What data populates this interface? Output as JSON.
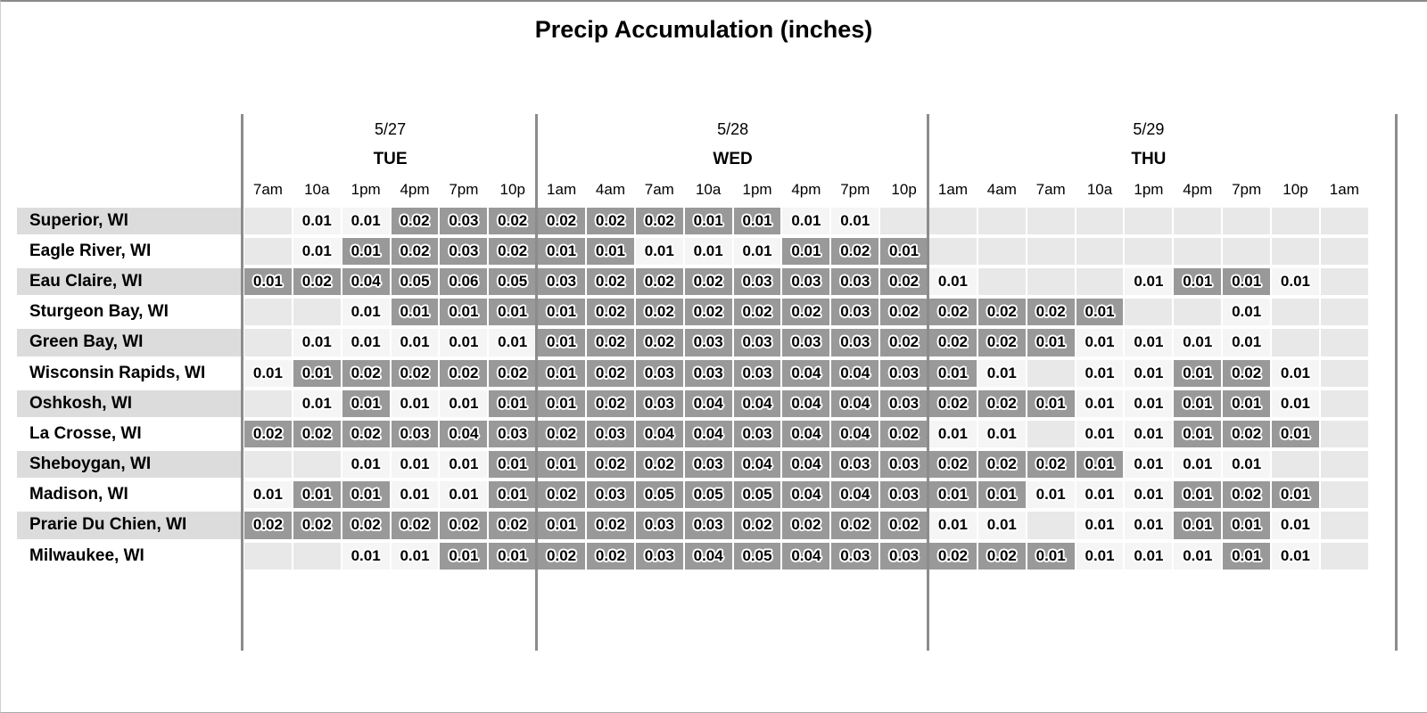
{
  "title": "Precip Accumulation (inches)",
  "colors": {
    "cell_empty": "#e8e8e8",
    "cell_light": "#f5f5f5",
    "cell_dark": "#999999",
    "row_stripe": "#dcdcdc",
    "divider": "#8c8c8c",
    "text": "#000000"
  },
  "chart_data": {
    "type": "heatmap",
    "title": "Precip Accumulation (inches)",
    "unit": "inches",
    "day_groups": [
      {
        "date": "5/27",
        "day": "TUE",
        "times": [
          "7am",
          "10a",
          "1pm",
          "4pm",
          "7pm",
          "10p"
        ]
      },
      {
        "date": "5/28",
        "day": "WED",
        "times": [
          "1am",
          "4am",
          "7am",
          "10a",
          "1pm",
          "4pm",
          "7pm",
          "10p"
        ]
      },
      {
        "date": "5/29",
        "day": "THU",
        "times": [
          "1am",
          "4am",
          "7am",
          "10a",
          "1pm",
          "4pm",
          "7pm",
          "10p",
          "1am"
        ]
      }
    ],
    "shade_legend": {
      "": "no precip",
      "light": "light cell background",
      "dark": "dark cell background"
    },
    "rows": [
      {
        "city": "Superior, WI",
        "values": [
          "",
          "0.01",
          "0.01",
          "0.02",
          "0.03",
          "0.02",
          "0.02",
          "0.02",
          "0.02",
          "0.01",
          "0.01",
          "0.01",
          "0.01",
          "",
          "",
          "",
          "",
          "",
          "",
          "",
          "",
          "",
          ""
        ],
        "shades": [
          "",
          "light",
          "light",
          "dark",
          "dark",
          "dark",
          "dark",
          "dark",
          "dark",
          "dark",
          "dark",
          "light",
          "light",
          "",
          "",
          "",
          "",
          "",
          "",
          "",
          "",
          "",
          ""
        ]
      },
      {
        "city": "Eagle River, WI",
        "values": [
          "",
          "0.01",
          "0.01",
          "0.02",
          "0.03",
          "0.02",
          "0.01",
          "0.01",
          "0.01",
          "0.01",
          "0.01",
          "0.01",
          "0.02",
          "0.01",
          "",
          "",
          "",
          "",
          "",
          "",
          "",
          "",
          ""
        ],
        "shades": [
          "",
          "light",
          "dark",
          "dark",
          "dark",
          "dark",
          "dark",
          "dark",
          "light",
          "light",
          "light",
          "dark",
          "dark",
          "dark",
          "",
          "",
          "",
          "",
          "",
          "",
          "",
          "",
          ""
        ]
      },
      {
        "city": "Eau Claire, WI",
        "values": [
          "0.01",
          "0.02",
          "0.04",
          "0.05",
          "0.06",
          "0.05",
          "0.03",
          "0.02",
          "0.02",
          "0.02",
          "0.03",
          "0.03",
          "0.03",
          "0.02",
          "0.01",
          "",
          "",
          "",
          "0.01",
          "0.01",
          "0.01",
          "0.01",
          ""
        ],
        "shades": [
          "dark",
          "dark",
          "dark",
          "dark",
          "dark",
          "dark",
          "dark",
          "dark",
          "dark",
          "dark",
          "dark",
          "dark",
          "dark",
          "dark",
          "light",
          "",
          "",
          "",
          "light",
          "dark",
          "dark",
          "light",
          ""
        ]
      },
      {
        "city": "Sturgeon Bay, WI",
        "values": [
          "",
          "",
          "0.01",
          "0.01",
          "0.01",
          "0.01",
          "0.01",
          "0.02",
          "0.02",
          "0.02",
          "0.02",
          "0.02",
          "0.03",
          "0.02",
          "0.02",
          "0.02",
          "0.02",
          "0.01",
          "",
          "",
          "0.01",
          "",
          ""
        ],
        "shades": [
          "",
          "",
          "light",
          "dark",
          "dark",
          "dark",
          "dark",
          "dark",
          "dark",
          "dark",
          "dark",
          "dark",
          "dark",
          "dark",
          "dark",
          "dark",
          "dark",
          "dark",
          "",
          "",
          "light",
          "",
          ""
        ]
      },
      {
        "city": "Green Bay, WI",
        "values": [
          "",
          "0.01",
          "0.01",
          "0.01",
          "0.01",
          "0.01",
          "0.01",
          "0.02",
          "0.02",
          "0.03",
          "0.03",
          "0.03",
          "0.03",
          "0.02",
          "0.02",
          "0.02",
          "0.01",
          "0.01",
          "0.01",
          "0.01",
          "0.01",
          "",
          ""
        ],
        "shades": [
          "",
          "light",
          "light",
          "light",
          "light",
          "light",
          "dark",
          "dark",
          "dark",
          "dark",
          "dark",
          "dark",
          "dark",
          "dark",
          "dark",
          "dark",
          "dark",
          "light",
          "light",
          "light",
          "light",
          "",
          ""
        ]
      },
      {
        "city": "Wisconsin Rapids, WI",
        "values": [
          "0.01",
          "0.01",
          "0.02",
          "0.02",
          "0.02",
          "0.02",
          "0.01",
          "0.02",
          "0.03",
          "0.03",
          "0.03",
          "0.04",
          "0.04",
          "0.03",
          "0.01",
          "0.01",
          "",
          "0.01",
          "0.01",
          "0.01",
          "0.02",
          "0.01",
          ""
        ],
        "shades": [
          "light",
          "dark",
          "dark",
          "dark",
          "dark",
          "dark",
          "dark",
          "dark",
          "dark",
          "dark",
          "dark",
          "dark",
          "dark",
          "dark",
          "dark",
          "light",
          "",
          "light",
          "light",
          "dark",
          "dark",
          "light",
          ""
        ]
      },
      {
        "city": "Oshkosh, WI",
        "values": [
          "",
          "0.01",
          "0.01",
          "0.01",
          "0.01",
          "0.01",
          "0.01",
          "0.02",
          "0.03",
          "0.04",
          "0.04",
          "0.04",
          "0.04",
          "0.03",
          "0.02",
          "0.02",
          "0.01",
          "0.01",
          "0.01",
          "0.01",
          "0.01",
          "0.01",
          ""
        ],
        "shades": [
          "",
          "light",
          "dark",
          "light",
          "light",
          "dark",
          "dark",
          "dark",
          "dark",
          "dark",
          "dark",
          "dark",
          "dark",
          "dark",
          "dark",
          "dark",
          "dark",
          "light",
          "light",
          "dark",
          "dark",
          "light",
          ""
        ]
      },
      {
        "city": "La Crosse, WI",
        "values": [
          "0.02",
          "0.02",
          "0.02",
          "0.03",
          "0.04",
          "0.03",
          "0.02",
          "0.03",
          "0.04",
          "0.04",
          "0.03",
          "0.04",
          "0.04",
          "0.02",
          "0.01",
          "0.01",
          "",
          "0.01",
          "0.01",
          "0.01",
          "0.02",
          "0.01",
          ""
        ],
        "shades": [
          "dark",
          "dark",
          "dark",
          "dark",
          "dark",
          "dark",
          "dark",
          "dark",
          "dark",
          "dark",
          "dark",
          "dark",
          "dark",
          "dark",
          "light",
          "light",
          "",
          "light",
          "light",
          "dark",
          "dark",
          "dark",
          ""
        ]
      },
      {
        "city": "Sheboygan, WI",
        "values": [
          "",
          "",
          "0.01",
          "0.01",
          "0.01",
          "0.01",
          "0.01",
          "0.02",
          "0.02",
          "0.03",
          "0.04",
          "0.04",
          "0.03",
          "0.03",
          "0.02",
          "0.02",
          "0.02",
          "0.01",
          "0.01",
          "0.01",
          "0.01",
          "",
          ""
        ],
        "shades": [
          "",
          "",
          "light",
          "light",
          "light",
          "dark",
          "dark",
          "dark",
          "dark",
          "dark",
          "dark",
          "dark",
          "dark",
          "dark",
          "dark",
          "dark",
          "dark",
          "dark",
          "light",
          "light",
          "light",
          "",
          ""
        ]
      },
      {
        "city": "Madison, WI",
        "values": [
          "0.01",
          "0.01",
          "0.01",
          "0.01",
          "0.01",
          "0.01",
          "0.02",
          "0.03",
          "0.05",
          "0.05",
          "0.05",
          "0.04",
          "0.04",
          "0.03",
          "0.01",
          "0.01",
          "0.01",
          "0.01",
          "0.01",
          "0.01",
          "0.02",
          "0.01",
          ""
        ],
        "shades": [
          "light",
          "dark",
          "dark",
          "light",
          "light",
          "dark",
          "dark",
          "dark",
          "dark",
          "dark",
          "dark",
          "dark",
          "dark",
          "dark",
          "dark",
          "dark",
          "light",
          "light",
          "light",
          "dark",
          "dark",
          "dark",
          ""
        ]
      },
      {
        "city": "Prarie Du Chien, WI",
        "values": [
          "0.02",
          "0.02",
          "0.02",
          "0.02",
          "0.02",
          "0.02",
          "0.01",
          "0.02",
          "0.03",
          "0.03",
          "0.02",
          "0.02",
          "0.02",
          "0.02",
          "0.01",
          "0.01",
          "",
          "0.01",
          "0.01",
          "0.01",
          "0.01",
          "0.01",
          ""
        ],
        "shades": [
          "dark",
          "dark",
          "dark",
          "dark",
          "dark",
          "dark",
          "dark",
          "dark",
          "dark",
          "dark",
          "dark",
          "dark",
          "dark",
          "dark",
          "light",
          "light",
          "",
          "light",
          "light",
          "dark",
          "dark",
          "light",
          ""
        ]
      },
      {
        "city": "Milwaukee, WI",
        "values": [
          "",
          "",
          "0.01",
          "0.01",
          "0.01",
          "0.01",
          "0.02",
          "0.02",
          "0.03",
          "0.04",
          "0.05",
          "0.04",
          "0.03",
          "0.03",
          "0.02",
          "0.02",
          "0.01",
          "0.01",
          "0.01",
          "0.01",
          "0.01",
          "0.01",
          ""
        ],
        "shades": [
          "",
          "",
          "light",
          "light",
          "dark",
          "dark",
          "dark",
          "dark",
          "dark",
          "dark",
          "dark",
          "dark",
          "dark",
          "dark",
          "dark",
          "dark",
          "dark",
          "light",
          "light",
          "light",
          "dark",
          "light",
          ""
        ]
      }
    ]
  }
}
